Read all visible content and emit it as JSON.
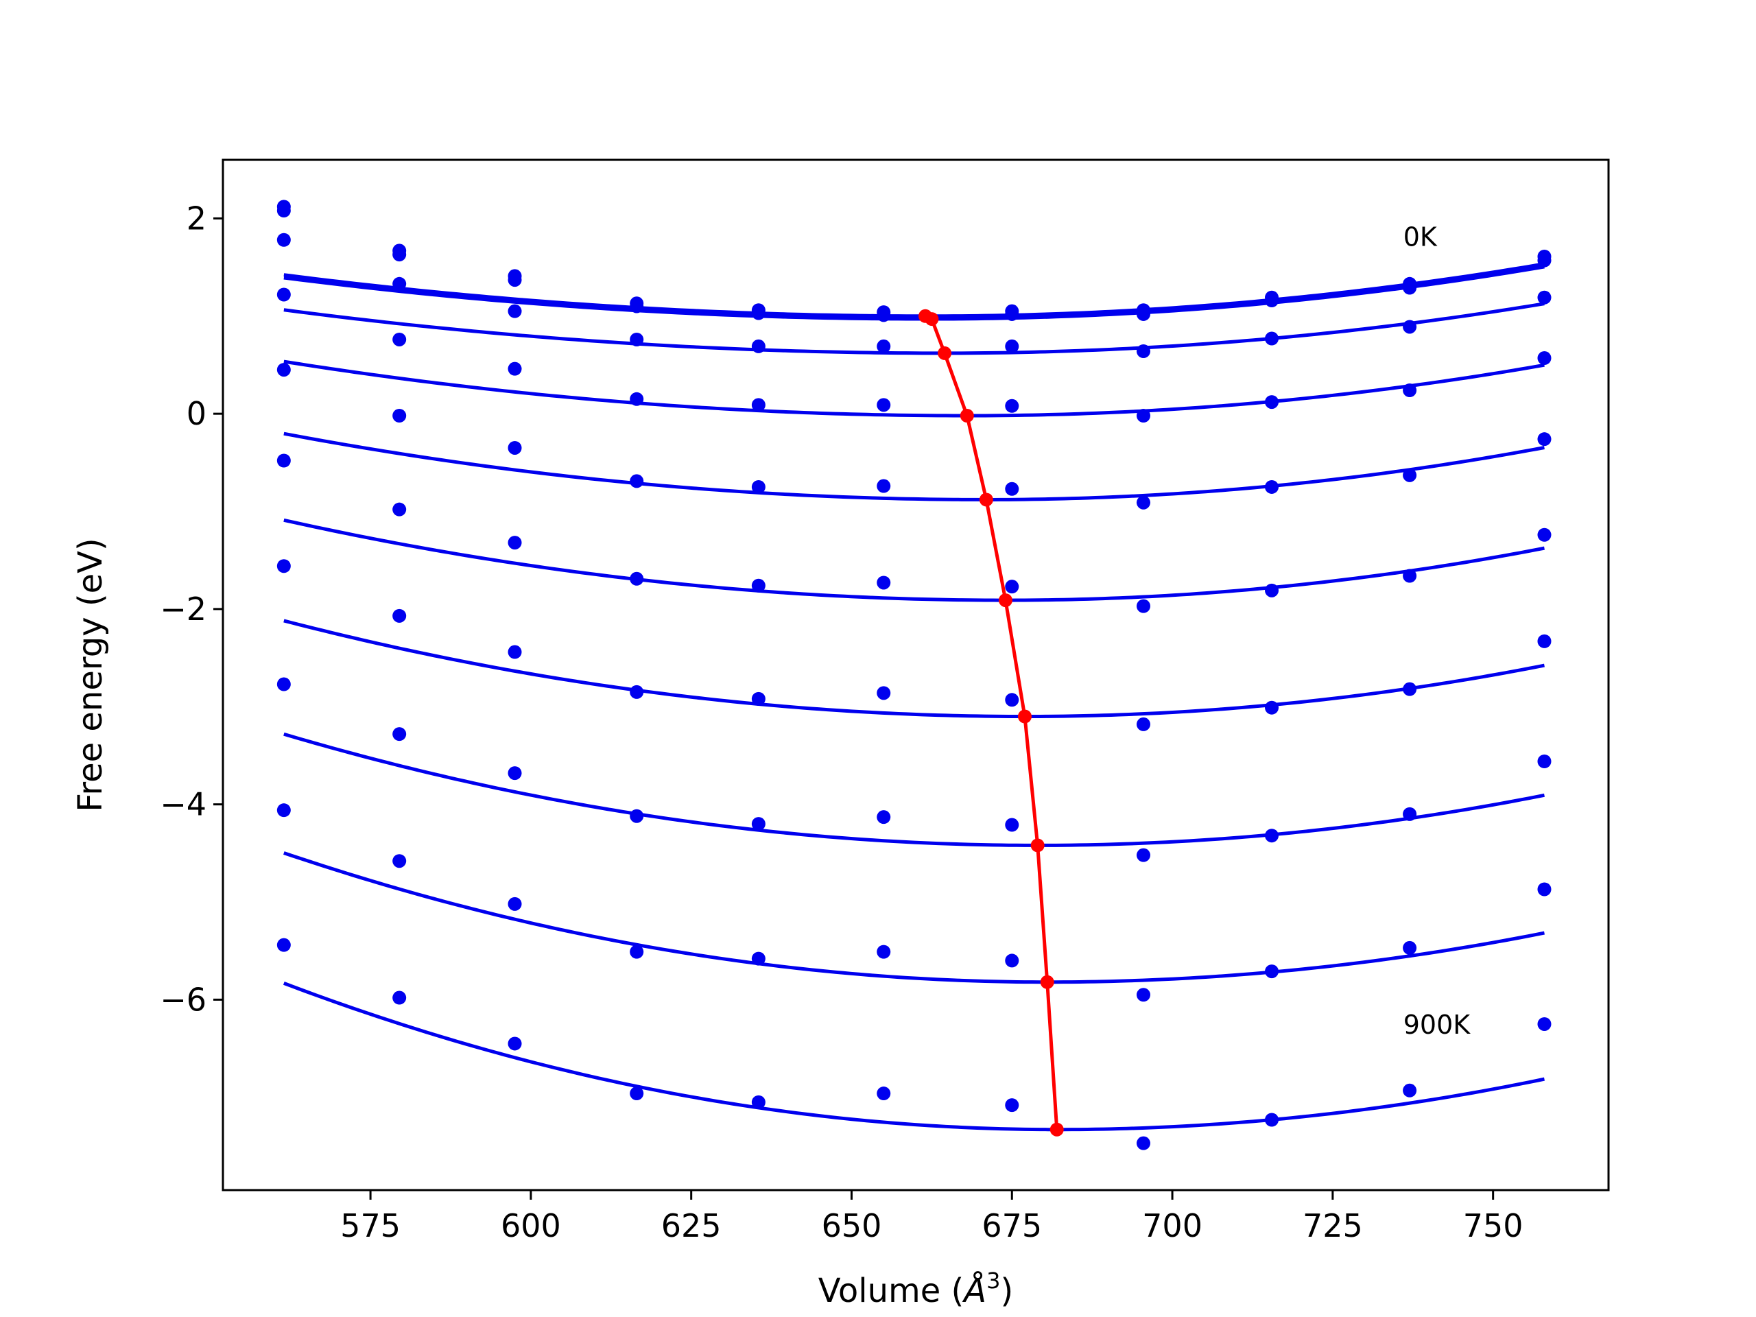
{
  "chart_data": {
    "type": "scatter",
    "xlabel_prefix": "Volume (",
    "xlabel_unit_base": "Å",
    "xlabel_unit_exp": "3",
    "xlabel_suffix": ")",
    "ylabel": "Free energy (eV)",
    "xlim": [
      552,
      768
    ],
    "ylim": [
      -7.95,
      2.6
    ],
    "xticks": [
      575,
      600,
      625,
      650,
      675,
      700,
      725,
      750
    ],
    "yticks": [
      2,
      0,
      -2,
      -4,
      -6
    ],
    "ytick_labels": [
      "2",
      "0",
      "−2",
      "−4",
      "−6"
    ],
    "grid": false,
    "annotations": [
      {
        "text": "0K",
        "x": 736,
        "y": 1.72
      },
      {
        "text": "900K",
        "x": 736,
        "y": -6.35
      }
    ],
    "colors": {
      "series": "#0000ee",
      "minimum_line": "#ff0000"
    },
    "volumes": [
      561.5,
      579.5,
      597.5,
      616.5,
      635.5,
      655,
      675,
      695.5,
      715.5,
      737,
      758
    ],
    "series": [
      {
        "points": [
          2.12,
          1.67,
          1.41,
          1.13,
          1.06,
          1.04,
          1.05,
          1.06,
          1.19,
          1.33,
          1.61
        ],
        "fit": {
          "v0": 662,
          "e0": 1.0,
          "a": 4.18e-05,
          "b": 5.8e-05
        }
      },
      {
        "points": [
          2.08,
          1.63,
          1.37,
          1.1,
          1.03,
          1.01,
          1.02,
          1.02,
          1.16,
          1.29,
          1.57
        ],
        "fit": {
          "v0": 662,
          "e0": 0.97,
          "a": 4.18e-05,
          "b": 5.8e-05
        }
      },
      {
        "points": [
          1.78,
          1.33,
          1.05,
          0.76,
          0.69,
          0.69,
          0.69,
          0.64,
          0.77,
          0.89,
          1.19
        ],
        "fit": {
          "v0": 664.5,
          "e0": 0.62,
          "a": 4.18e-05,
          "b": 5.8e-05
        }
      },
      {
        "points": [
          1.22,
          0.76,
          0.46,
          0.15,
          0.09,
          0.09,
          0.08,
          -0.02,
          0.12,
          0.24,
          0.57
        ],
        "fit": {
          "v0": 668,
          "e0": -0.02,
          "a": 4.89e-05,
          "b": 6.4e-05
        }
      },
      {
        "points": [
          0.45,
          -0.02,
          -0.35,
          -0.69,
          -0.75,
          -0.74,
          -0.77,
          -0.91,
          -0.75,
          -0.63,
          -0.26
        ],
        "fit": {
          "v0": 671,
          "e0": -0.88,
          "a": 5.64e-05,
          "b": 7.05e-05
        }
      },
      {
        "points": [
          -0.48,
          -0.98,
          -1.32,
          -1.69,
          -1.76,
          -1.73,
          -1.77,
          -1.97,
          -1.81,
          -1.66,
          -1.24
        ],
        "fit": {
          "v0": 674,
          "e0": -1.91,
          "a": 6.48e-05,
          "b": 7.56e-05
        }
      },
      {
        "points": [
          -1.56,
          -2.07,
          -2.44,
          -2.85,
          -2.92,
          -2.86,
          -2.93,
          -3.18,
          -3.01,
          -2.82,
          -2.33
        ],
        "fit": {
          "v0": 677,
          "e0": -3.1,
          "a": 7.35e-05,
          "b": 7.97e-05
        }
      },
      {
        "points": [
          -2.77,
          -3.28,
          -3.68,
          -4.12,
          -4.2,
          -4.13,
          -4.21,
          -4.52,
          -4.32,
          -4.1,
          -3.56
        ],
        "fit": {
          "v0": 679,
          "e0": -4.42,
          "a": 8.25e-05,
          "b": 8.23e-05
        }
      },
      {
        "points": [
          -4.06,
          -4.58,
          -5.02,
          -5.51,
          -5.58,
          -5.51,
          -5.6,
          -5.95,
          -5.71,
          -5.47,
          -4.87
        ],
        "fit": {
          "v0": 680.5,
          "e0": -5.82,
          "a": 9.34e-05,
          "b": 8.38e-05
        }
      },
      {
        "points": [
          -5.44,
          -5.98,
          -6.45,
          -6.96,
          -7.05,
          -6.96,
          -7.08,
          -7.47,
          -7.23,
          -6.93,
          -6.25
        ],
        "fit": {
          "v0": 682,
          "e0": -7.33,
          "a": 0.0001032,
          "b": 8.95e-05
        }
      }
    ],
    "minimum_line": {
      "x": [
        661.5,
        662.5,
        664.5,
        668,
        671,
        674,
        677,
        679,
        680.5,
        682
      ],
      "y": [
        1.0,
        0.97,
        0.62,
        -0.02,
        -0.88,
        -1.91,
        -3.1,
        -4.42,
        -5.82,
        -7.33
      ]
    }
  }
}
